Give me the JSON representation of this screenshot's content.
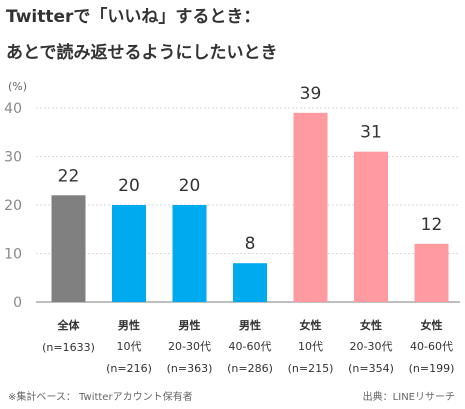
{
  "title": {
    "line1": "Twitterで「いいね」するとき：",
    "line2": "あとで読み返せるようにしたいとき"
  },
  "chart_data": {
    "type": "bar",
    "unit_label": "(%)",
    "ylim": [
      0,
      40
    ],
    "yticks": [
      0,
      10,
      20,
      30,
      40
    ],
    "grid": true,
    "categories": [
      [
        "全体",
        "",
        "(n=1633)"
      ],
      [
        "男性",
        "10代",
        "(n=216)"
      ],
      [
        "男性",
        "20-30代",
        "(n=363)"
      ],
      [
        "男性",
        "40-60代",
        "(n=286)"
      ],
      [
        "女性",
        "10代",
        "(n=215)"
      ],
      [
        "女性",
        "20-30代",
        "(n=354)"
      ],
      [
        "女性",
        "40-60代",
        "(n=199)"
      ]
    ],
    "values": [
      22,
      20,
      20,
      8,
      39,
      31,
      12
    ],
    "bar_colors": [
      "#808080",
      "#00aaee",
      "#00aaee",
      "#00aaee",
      "#ff9aa0",
      "#ff9aa0",
      "#ff9aa0"
    ]
  },
  "footer": {
    "note": "※集計ベース：  Twitterアカウント保有者",
    "source": "出典：LINEリサーチ"
  }
}
